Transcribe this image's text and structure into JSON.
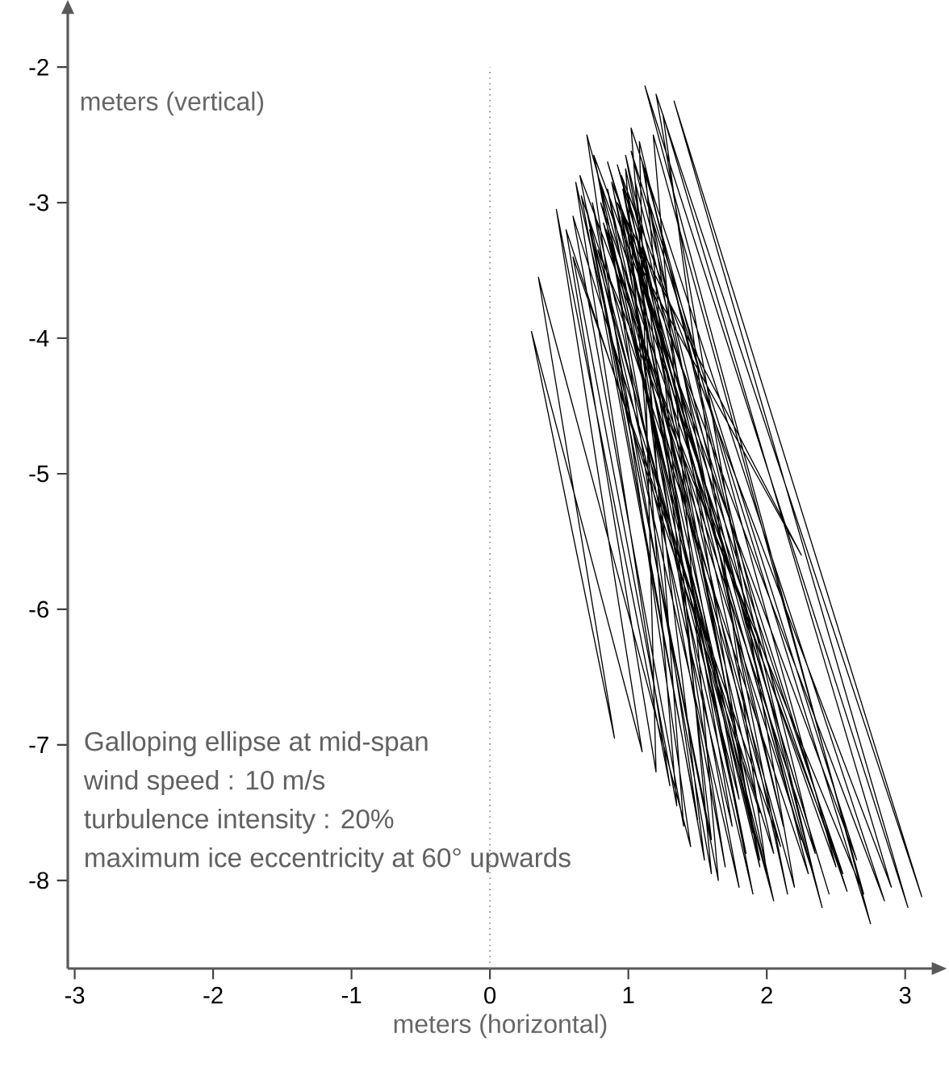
{
  "chart_data": {
    "type": "line",
    "xlabel": "meters (horizontal)",
    "ylabel": "meters (vertical)",
    "annotations": [
      "Galloping ellipse at mid-span",
      "wind speed : 10 m/s",
      "turbulence intensity : 20%",
      "maximum ice eccentricity at 60° upwards"
    ],
    "xlim": [
      -3.05,
      3.2
    ],
    "ylim": [
      -8.65,
      -1.6
    ],
    "xticks": [
      -3,
      -2,
      -1,
      0,
      1,
      2,
      3
    ],
    "yticks": [
      -2,
      -3,
      -4,
      -5,
      -6,
      -7,
      -8
    ],
    "marker": "none",
    "line_style": "solid",
    "ref_lines": [
      {
        "axis": "x",
        "value": 0,
        "line_style": "dotted",
        "color": "#808080"
      }
    ],
    "series": [
      {
        "color": "#000000",
        "x": [
          1.0,
          1.95,
          0.85,
          1.8,
          0.62,
          1.3,
          0.48,
          1.1,
          0.3,
          0.9,
          0.35,
          1.45,
          0.7,
          2.2,
          1.2,
          3.12,
          1.33,
          3.02,
          1.12,
          2.75,
          1.02,
          2.4,
          0.92,
          2.58,
          0.78,
          1.7,
          0.95,
          2.05,
          0.72,
          1.6,
          1.05,
          2.3,
          0.66,
          1.5,
          0.88,
          1.9,
          1.1,
          2.5,
          0.8,
          2.1,
          0.6,
          1.35,
          0.98,
          2.15,
          1.15,
          2.65,
          0.75,
          1.85,
          0.9,
          1.95,
          0.55,
          1.2,
          1.08,
          2.35,
          0.82,
          2.0,
          1.25,
          2.9,
          0.95,
          1.75,
          0.7,
          1.55,
          1.0,
          2.25,
          0.85,
          2.45,
          1.05,
          2.25,
          0.92,
          2.55,
          0.65,
          1.65,
          1.18,
          2.7,
          0.78,
          1.8,
          0.96,
          2.05,
          0.6,
          1.4,
          1.02,
          2.85,
          0.88,
          1.9,
          0.74,
          1.6,
          1.12,
          2.35,
          0.84,
          1.95,
          0.98,
          2.12,
          1.0
        ],
        "values": [
          -2.95,
          -7.85,
          -2.9,
          -8.05,
          -2.85,
          -7.3,
          -3.05,
          -7.05,
          -3.95,
          -6.95,
          -3.55,
          -7.75,
          -2.5,
          -8.05,
          -2.2,
          -8.12,
          -2.25,
          -8.2,
          -2.14,
          -8.32,
          -2.62,
          -8.2,
          -2.72,
          -8.08,
          -2.8,
          -7.9,
          -3.1,
          -8.15,
          -3.2,
          -7.7,
          -2.85,
          -7.95,
          -2.95,
          -7.55,
          -3.3,
          -7.65,
          -2.7,
          -7.9,
          -3.0,
          -7.75,
          -3.4,
          -7.45,
          -2.75,
          -8.1,
          -3.0,
          -7.85,
          -2.65,
          -7.8,
          -2.95,
          -7.5,
          -3.2,
          -7.2,
          -2.55,
          -8.0,
          -3.15,
          -7.95,
          -2.35,
          -8.05,
          -2.8,
          -7.6,
          -3.05,
          -7.85,
          -3.25,
          -7.7,
          -2.7,
          -8.1,
          -3.4,
          -5.6,
          -3.0,
          -7.95,
          -2.8,
          -8.0,
          -2.5,
          -8.1,
          -3.35,
          -7.4,
          -2.9,
          -7.8,
          -3.1,
          -7.6,
          -2.45,
          -8.15,
          -2.85,
          -8.1,
          -3.0,
          -7.95,
          -2.75,
          -7.8,
          -3.2,
          -7.9,
          -2.65,
          -7.6,
          -3.0
        ]
      }
    ]
  }
}
